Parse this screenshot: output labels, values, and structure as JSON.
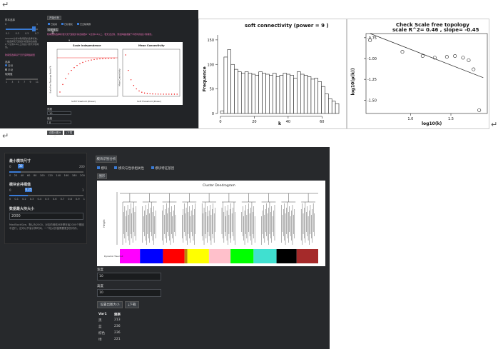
{
  "return_glyph": "↵",
  "top_app": {
    "sidebar": {
      "title": "样本选择",
      "slider_min": "0",
      "slider_max": "1",
      "ticks": [
        "0.1",
        "0.2",
        "0.3",
        "0.4",
        "0.5",
        "0.6",
        "0.7",
        "0.8"
      ],
      "desc": "WGCNA分析中软阈值的选择标准，一般选择无尺度拓扑模型拟合指数R^2达到0.8以上的最小值作为软阈值。",
      "highlight": "软阈值选择基于无尺度网络模型",
      "radio_label": "选择",
      "radio_options": [
        "自动",
        "手动"
      ],
      "power_label": "软阈值",
      "power_ticks": [
        "1",
        "2",
        "3",
        "4",
        "5",
        "6",
        "7",
        "8",
        "9",
        "10",
        "11",
        "12"
      ]
    },
    "main": {
      "run_button": "开始分析",
      "checks": [
        "已完成",
        "已标准化",
        "已去除离群"
      ],
      "sub_button": "软阈值结果",
      "warn_text": "软阈值的选择标准为无尺度拓扑拟合指数R^2达到0.8以上，若无法达到，则选择曲线趋于平稳时的最小软阈值。",
      "power_value": "9",
      "plot1_title": "Scale independence",
      "plot1_xlabel": "Soft Threshold (Power)",
      "plot1_ylabel": "Scale Free Topology Model Fit",
      "plot2_title": "Mean Connectivity",
      "plot2_xlabel": "Soft Threshold (Power)",
      "plot2_ylabel": "Mean Connectivity",
      "width_label": "宽度",
      "width_value": "10",
      "height_label": "高度",
      "height_value": "8",
      "save_button": "设置出图大小",
      "download_button": "下载"
    }
  },
  "hist": {
    "title": "soft connectivity (power =  9 )",
    "xlabel": "k",
    "ylabel": "Frequence",
    "x_ticks": [
      "0",
      "20",
      "40",
      "60"
    ],
    "y_ticks": [
      "0",
      "50",
      "100",
      "150"
    ],
    "ylim": [
      0,
      160
    ],
    "values": [
      5,
      115,
      130,
      100,
      90,
      85,
      82,
      85,
      82,
      80,
      78,
      85,
      82,
      80,
      78,
      82,
      75,
      78,
      82,
      80,
      78,
      72,
      85,
      80,
      78,
      75,
      70,
      72,
      65,
      55,
      40,
      30,
      25,
      20
    ]
  },
  "scatter": {
    "title": "Check Scale free topology",
    "subtitle": "scale R^2= 0.46 , slope= -0.45",
    "xlabel": "log10(k)",
    "ylabel": "log10(p(k))",
    "x_ticks": [
      "1.0",
      "1.5"
    ],
    "y_ticks": [
      "-0.75",
      "-1.00",
      "-1.25",
      "-1.50"
    ],
    "points": [
      [
        0.5,
        -0.78
      ],
      [
        0.9,
        -0.92
      ],
      [
        1.15,
        -0.97
      ],
      [
        1.3,
        -0.99
      ],
      [
        1.45,
        -0.98
      ],
      [
        1.55,
        -0.97
      ],
      [
        1.65,
        -0.99
      ],
      [
        1.72,
        -1.02
      ],
      [
        1.78,
        -1.13
      ],
      [
        1.85,
        -1.62
      ]
    ],
    "line": [
      [
        0.5,
        -0.7
      ],
      [
        1.9,
        -1.23
      ]
    ]
  },
  "bottom_app": {
    "sidebar": {
      "min_module_label": "最小模块尺寸",
      "min_module_min": "0",
      "min_module_max": "200",
      "min_module_value": "30",
      "min_module_ticks": [
        "0",
        "20",
        "40",
        "60",
        "80",
        "100",
        "120",
        "140",
        "160",
        "180",
        "200"
      ],
      "merge_label": "模块合并阈值",
      "merge_min": "0",
      "merge_max": "1",
      "merge_value": "0.25",
      "merge_ticks": [
        "0",
        "0.1",
        "0.2",
        "0.3",
        "0.4",
        "0.5",
        "0.6",
        "0.7",
        "0.8",
        "0.9",
        "1"
      ],
      "max_block_label": "数据最大块大小",
      "max_block_value": "2000",
      "desc": "MaxBlockSize，默认为2000。对应的网络分析是在每2000个基因中进行，这可以节省计算时间。一个较大的值需要更多的内存。"
    },
    "main": {
      "run_button": "模块识别分析",
      "checks": [
        "模块",
        "模块与性状相关性",
        "模块特征基因"
      ],
      "tab": "图形",
      "plot_title": "Cluster Dendrogram",
      "plot_ylabel": "Height",
      "plot_caption": "Dynamic Tree Cut",
      "module_colors": [
        "#ff00ff",
        "#0000ff",
        "#ff0000",
        "#b8860b",
        "#ffff00",
        "#ffc0cb",
        "#00ff00",
        "#40e0d0",
        "#000000",
        "#a52a2a"
      ],
      "width_label": "宽度",
      "width_value": "10",
      "height_label": "高度",
      "height_value": "10",
      "save_button": "设置出图大小",
      "download_button": "下载",
      "table_headers": [
        "Var1",
        "频率"
      ],
      "table_rows": [
        [
          "黑",
          "213"
        ],
        [
          "蓝",
          "236"
        ],
        [
          "棕色",
          "236"
        ],
        [
          "绿",
          "221"
        ]
      ]
    }
  }
}
